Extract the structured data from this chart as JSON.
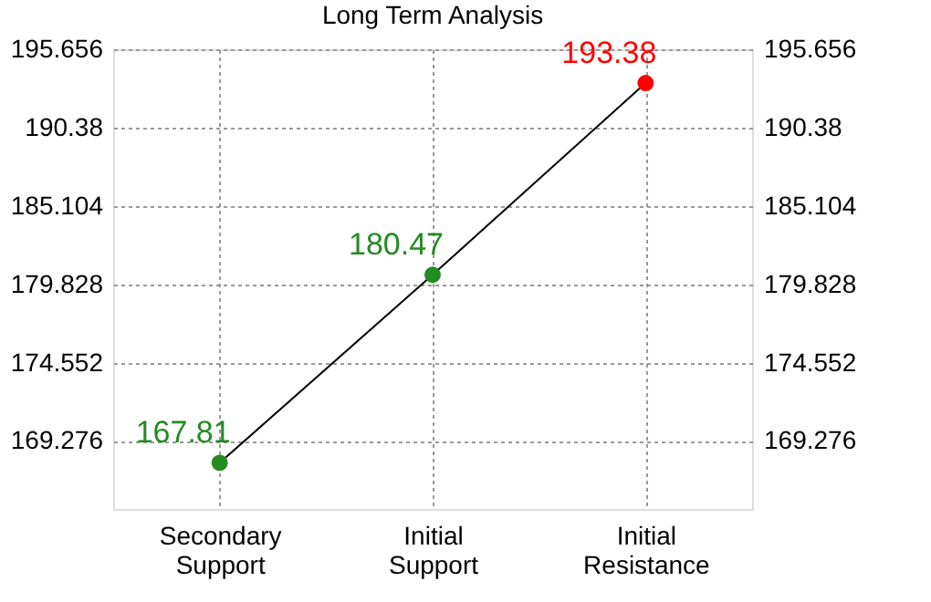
{
  "chart_data": {
    "type": "line",
    "title": "Long Term Analysis",
    "categories": [
      "Secondary Support",
      "Initial Support",
      "Initial Resistance"
    ],
    "series": [
      {
        "color": "#000000",
        "colors": [
          "#228b22",
          "#228b22",
          "#ff0000"
        ],
        "values": [
          167.81,
          180.47,
          193.38
        ]
      }
    ],
    "data_labels": true,
    "marker": "circle",
    "line_style": "solid",
    "grid": true,
    "ylim": [
      164.7,
      195.656
    ],
    "yticks": [
      169.276,
      174.552,
      179.828,
      185.104,
      190.38,
      195.656
    ],
    "y2lim": [
      164.7,
      195.656
    ],
    "y2ticks": [
      169.276,
      174.552,
      179.828,
      185.104,
      190.38,
      195.656
    ]
  }
}
